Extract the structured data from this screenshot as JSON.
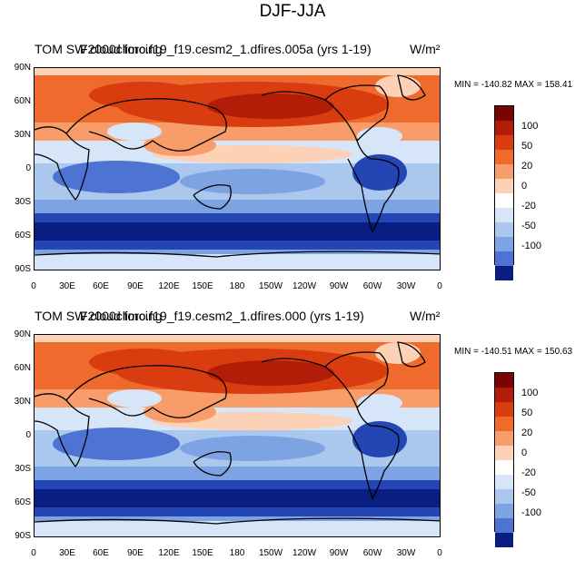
{
  "figure_title": "DJF-JJA",
  "panels": [
    {
      "left_title": "TOM SW cloud forcing",
      "case_title": "F2000climo.f19_f19.cesm2_1.dfires.005a (yrs 1-19)",
      "units": "W/m²",
      "stats": "MIN = -140.82  MAX = 158.41"
    },
    {
      "left_title": "TOM SW cloud forcing",
      "case_title": "F2000climo.f19_f19.cesm2_1.dfires.000 (yrs 1-19)",
      "units": "W/m²",
      "stats": "MIN = -140.51  MAX = 150.63"
    }
  ],
  "lat_labels": [
    "90N",
    "60N",
    "30N",
    "0",
    "30S",
    "60S",
    "90S"
  ],
  "lon_labels": [
    "0",
    "30E",
    "60E",
    "90E",
    "120E",
    "150E",
    "180",
    "150W",
    "120W",
    "90W",
    "60W",
    "30W",
    "0"
  ],
  "colorbar": {
    "colors": [
      "#7a0403",
      "#b31d07",
      "#d83c0f",
      "#ee6b2d",
      "#f89d69",
      "#fcd1b5",
      "#ffffff",
      "#d6e6f8",
      "#aac8ee",
      "#7ea3e3",
      "#4d73d3",
      "#2445b4",
      "#0a1d80"
    ],
    "labels": [
      "100",
      "50",
      "20",
      "0",
      "-20",
      "-50",
      "-100"
    ]
  }
}
